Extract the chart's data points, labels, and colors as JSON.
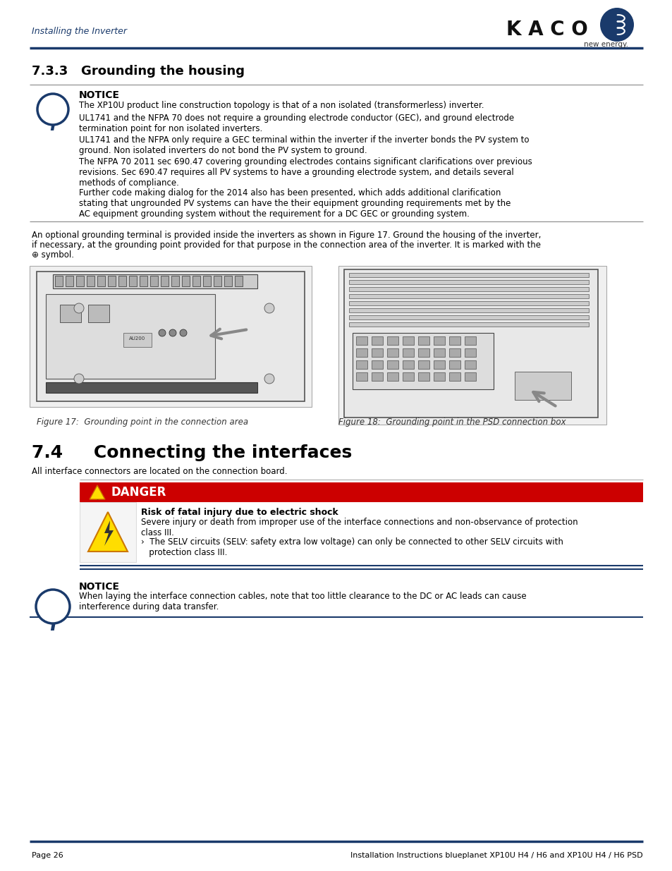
{
  "header_text": "Installing the Inverter",
  "kaco_text": "K A C O",
  "kaco_sub": "new energy.",
  "section_333_title": "7.3.3   Grounding the housing",
  "notice_title": "NOTICE",
  "notice_lines": [
    "The XP10U product line construction topology is that of a non isolated (transformerless) inverter.",
    "UL1741 and the NFPA 70 does not require a grounding electrode conductor (GEC), and ground electrode\ntermination point for non isolated inverters.",
    "UL1741 and the NFPA only require a GEC terminal within the inverter if the inverter bonds the PV system to\nground. Non isolated inverters do not bond the PV system to ground.",
    "The NFPA 70 2011 sec 690.47 covering grounding electrodes contains significant clarifications over previous\nrevisions. Sec 690.47 requires all PV systems to have a grounding electrode system, and details several\nmethods of compliance.",
    "Further code making dialog for the 2014 also has been presented, which adds additional clarification\nstating that ungrounded PV systems can have the their equipment grounding requirements met by the\nAC equipment grounding system without the requirement for a DC GEC or grounding system."
  ],
  "body_text1": "An optional grounding terminal is provided inside the inverters as shown in Figure 17. Ground the housing of the inverter,",
  "body_text2": "if necessary, at the grounding point provided for that purpose in the connection area of the inverter. It is marked with the",
  "body_text3": "⊕ symbol.",
  "fig17_caption": "Figure 17:  Grounding point in the connection area",
  "fig18_caption": "Figure 18:  Grounding point in the PSD connection box",
  "section_74_title": "7.4     Connecting the interfaces",
  "section_74_body": "All interface connectors are located on the connection board.",
  "danger_title": "DANGER",
  "danger_bg": "#cc0000",
  "danger_line1": "Risk of fatal injury due to electric shock",
  "danger_line2": "Severe injury or death from improper use of the interface connections and non-observance of protection\nclass III.",
  "danger_line3": "›  The SELV circuits (SELV: safety extra low voltage) can only be connected to other SELV circuits with\n   protection class III.",
  "notice2_title": "NOTICE",
  "notice2_line": "When laying the interface connection cables, note that too little clearance to the DC or AC leads can cause\ninterference during data transfer.",
  "footer_left": "Page 26",
  "footer_right": "Installation Instructions blueplanet XP10U H4 / H6 and XP10U H4 / H6 PSD",
  "blue": "#1a3a6b",
  "black": "#000000",
  "white": "#ffffff",
  "gray_line": "#aaaaaa",
  "bg": "#ffffff"
}
